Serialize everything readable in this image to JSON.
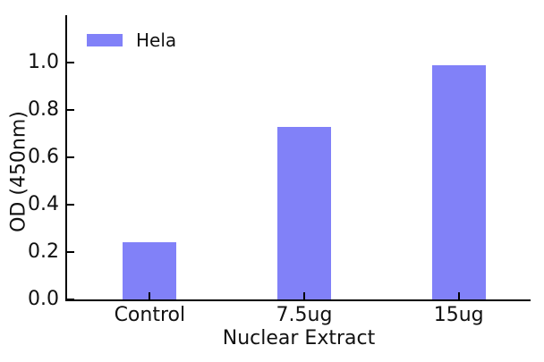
{
  "figure": {
    "background": "#ffffff"
  },
  "chart_data": {
    "type": "bar",
    "title": "",
    "categories": [
      "Control",
      "7.5ug",
      "15ug"
    ],
    "series": [
      {
        "name": "Hela",
        "values": [
          0.24,
          0.73,
          0.99
        ]
      }
    ],
    "xlabel": "Nuclear Extract",
    "ylabel": "OD (450nm)",
    "ylim": [
      0,
      1.2
    ],
    "yticks": [
      0,
      0.2,
      0.4,
      0.6,
      0.8,
      1.0
    ],
    "ytick_format_decimals": 1,
    "bar_color": "#8181f8",
    "axis_color": "#000000",
    "text_color": "#111111",
    "grid": false,
    "legend_position": "upper-left",
    "tick_direction": "in"
  }
}
